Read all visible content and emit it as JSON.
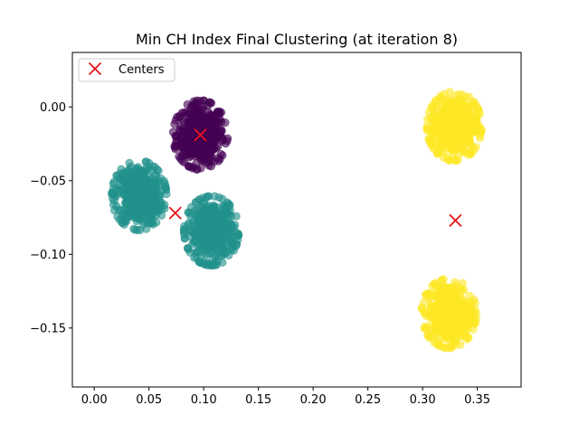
{
  "chart_data": {
    "type": "scatter",
    "title": "Min CH Index Final Clustering (at iteration 8)",
    "xlabel": "",
    "ylabel": "",
    "xlim": [
      -0.02,
      0.39
    ],
    "ylim": [
      -0.19,
      0.037
    ],
    "x_ticks": [
      0.0,
      0.05,
      0.1,
      0.15,
      0.2,
      0.25,
      0.3,
      0.35
    ],
    "x_tick_labels": [
      "0.00",
      "0.05",
      "0.10",
      "0.15",
      "0.20",
      "0.25",
      "0.30",
      "0.35"
    ],
    "y_ticks": [
      0.0,
      -0.05,
      -0.1,
      -0.15
    ],
    "y_tick_labels": [
      "0.00",
      "−0.05",
      "−0.10",
      "−0.15"
    ],
    "grid": false,
    "legend": {
      "position": "upper-left",
      "entries": [
        {
          "label": "Centers",
          "marker": "x",
          "color": "#e8141b"
        }
      ]
    },
    "clusters": [
      {
        "color": "#440154",
        "center": [
          0.097,
          -0.019
        ],
        "spread": [
          0.0175,
          0.0165
        ],
        "count": 450
      },
      {
        "color": "#21918c",
        "center": [
          0.041,
          -0.06
        ],
        "spread": [
          0.0175,
          0.0165
        ],
        "count": 450
      },
      {
        "color": "#21918c",
        "center": [
          0.107,
          -0.084
        ],
        "spread": [
          0.0175,
          0.0165
        ],
        "count": 450
      },
      {
        "color": "#fde725",
        "center": [
          0.329,
          -0.013
        ],
        "spread": [
          0.0175,
          0.0165
        ],
        "count": 450
      },
      {
        "color": "#fde725",
        "center": [
          0.324,
          -0.14
        ],
        "spread": [
          0.0175,
          0.0165
        ],
        "count": 450
      }
    ],
    "centers": [
      {
        "x": 0.097,
        "y": -0.019
      },
      {
        "x": 0.074,
        "y": -0.072
      },
      {
        "x": 0.33,
        "y": -0.077
      }
    ],
    "center_color": "#e8141b"
  }
}
